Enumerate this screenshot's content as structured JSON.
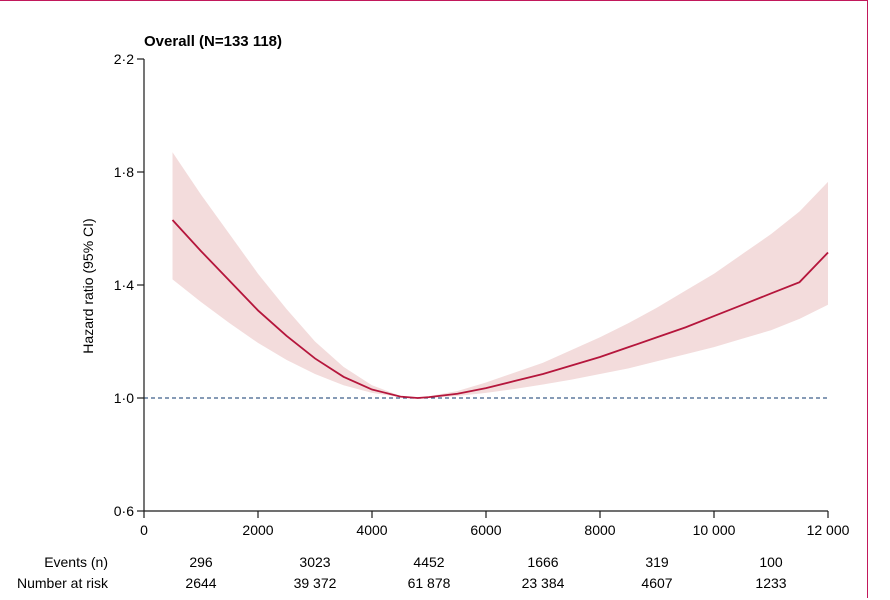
{
  "chart_data": {
    "type": "line",
    "title": "Overall (N=133 118)",
    "xlabel": "",
    "ylabel": "Hazard ratio (95% CI)",
    "xlim": [
      0,
      12000
    ],
    "ylim": [
      0.6,
      2.2
    ],
    "x_ticks": [
      0,
      2000,
      4000,
      6000,
      8000,
      10000,
      12000
    ],
    "x_tick_labels": [
      "0",
      "2000",
      "4000",
      "6000",
      "8000",
      "10 000",
      "12 000"
    ],
    "y_ticks": [
      0.6,
      1.0,
      1.4,
      1.8,
      2.2
    ],
    "y_tick_labels": [
      "0·6",
      "1·0",
      "1·4",
      "1·8",
      "2·2"
    ],
    "reference_line": 1.0,
    "series": [
      {
        "x": [
          500,
          1000,
          1500,
          2000,
          2500,
          3000,
          3500,
          4000,
          4500,
          4800,
          5000,
          5500,
          6000,
          6500,
          7000,
          7500,
          8000,
          8500,
          9000,
          9500,
          10000,
          10500,
          11000,
          11500,
          12000
        ],
        "y": [
          1.63,
          1.52,
          1.415,
          1.31,
          1.22,
          1.14,
          1.075,
          1.03,
          1.005,
          1.0,
          1.003,
          1.015,
          1.035,
          1.06,
          1.085,
          1.115,
          1.145,
          1.18,
          1.215,
          1.25,
          1.29,
          1.33,
          1.37,
          1.41,
          1.515
        ],
        "lower": [
          1.42,
          1.34,
          1.265,
          1.195,
          1.135,
          1.085,
          1.045,
          1.018,
          1.003,
          1.0,
          1.001,
          1.007,
          1.018,
          1.032,
          1.048,
          1.065,
          1.085,
          1.105,
          1.13,
          1.155,
          1.18,
          1.21,
          1.24,
          1.28,
          1.33
        ],
        "upper": [
          1.87,
          1.72,
          1.58,
          1.44,
          1.315,
          1.2,
          1.11,
          1.045,
          1.007,
          1.0,
          1.006,
          1.025,
          1.055,
          1.09,
          1.125,
          1.17,
          1.215,
          1.265,
          1.32,
          1.38,
          1.44,
          1.51,
          1.58,
          1.66,
          1.765
        ],
        "color": "#b5163c",
        "band_color": "#f3dcdc"
      }
    ],
    "ref_line_color": "#3e5f8a"
  },
  "risk_table": {
    "rows": [
      {
        "label": "Events (n)",
        "values": [
          "296",
          "3023",
          "4452",
          "1666",
          "319",
          "100"
        ]
      },
      {
        "label": "Number at risk",
        "values": [
          "2644",
          "39 372",
          "61 878",
          "23 384",
          "4607",
          "1233"
        ]
      }
    ],
    "positions": [
      1000,
      3000,
      5000,
      7000,
      9000,
      11000
    ]
  }
}
